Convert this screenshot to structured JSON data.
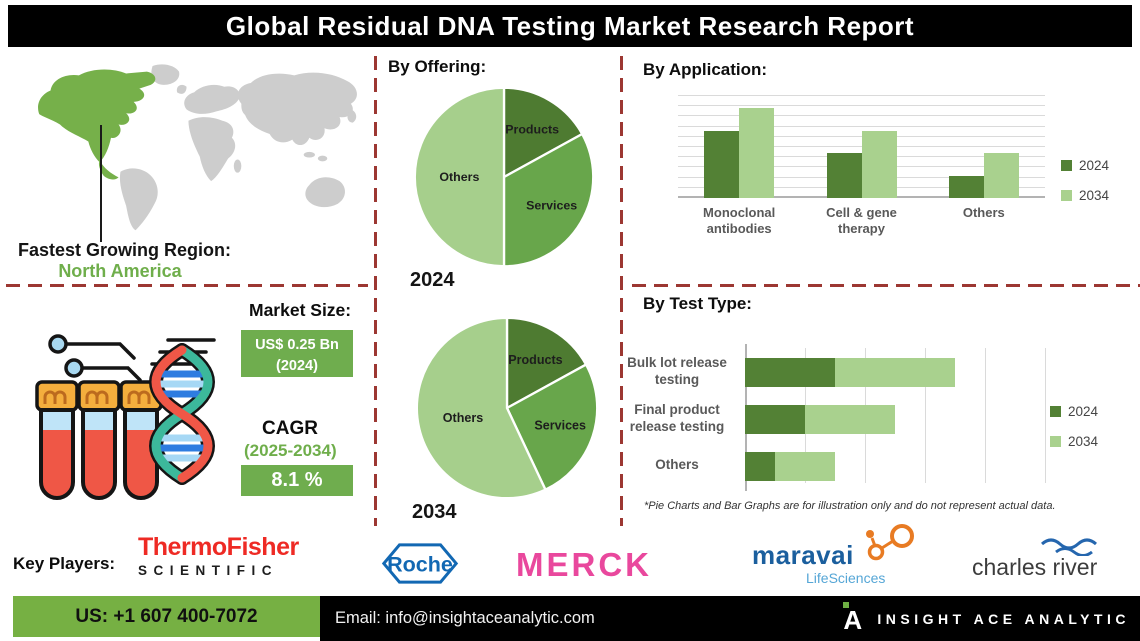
{
  "title": "Global Residual DNA Testing Market Research Report",
  "region": {
    "label": "Fastest Growing Region:",
    "value": "North America"
  },
  "market": {
    "label": "Market Size:",
    "size_value": "US$ 0.25 Bn",
    "size_year": "(2024)",
    "cagr_label": "CAGR",
    "cagr_period": "(2025-2034)",
    "cagr_value": "8.1 %"
  },
  "footnote": "*Pie Charts and Bar Graphs are for illustration only and do not represent actual data.",
  "chart_data": [
    {
      "type": "pie",
      "title": "By Offering:",
      "year": "2024",
      "labels": [
        "Products",
        "Services",
        "Others"
      ],
      "values": [
        17,
        33,
        50
      ],
      "colors": [
        "#4e7b31",
        "#68a64b",
        "#a6cf8c"
      ],
      "legend_position": "none"
    },
    {
      "type": "pie",
      "year": "2034",
      "labels": [
        "Products",
        "Services",
        "Others"
      ],
      "values": [
        17,
        26,
        57
      ],
      "colors": [
        "#4e7b31",
        "#68a64b",
        "#a6cf8c"
      ],
      "legend_position": "none"
    },
    {
      "type": "column",
      "title": "By Application:",
      "categories": [
        "Monoclonal antibodies",
        "Cell & gene therapy",
        "Others"
      ],
      "series": [
        {
          "name": "2024",
          "color": "#538135",
          "values": [
            6.6,
            4.4,
            2.2
          ]
        },
        {
          "name": "2034",
          "color": "#a9d18e",
          "values": [
            8.8,
            6.6,
            4.4
          ]
        }
      ],
      "ylim": [
        0,
        10
      ],
      "gridlines": 10,
      "grid": true,
      "legend_position": "right"
    },
    {
      "type": "stacked-hbar",
      "title": "By Test Type:",
      "categories": [
        "Bulk lot release testing",
        "Final product release testing",
        "Others"
      ],
      "series": [
        {
          "name": "2024",
          "color": "#538135",
          "values": [
            1.5,
            1.0,
            0.5
          ]
        },
        {
          "name": "2034",
          "color": "#a9d18e",
          "values": [
            2.0,
            1.5,
            1.0
          ]
        }
      ],
      "xlim": [
        0,
        5
      ],
      "gridlines": 5,
      "grid": true,
      "legend_position": "right"
    }
  ],
  "key_players": {
    "label": "Key Players:",
    "thermo_line1": "ThermoFisher",
    "thermo_line2": "SCIENTIFIC",
    "roche": "Roche",
    "merck": "MERCK",
    "maravai_line1": "maravai",
    "maravai_line2": "LifeSciences",
    "charles": "charles river"
  },
  "footer": {
    "phone": "US: +1 607 400-7072",
    "email": "Email: info@insightaceanalytic.com",
    "brand": "INSIGHT ACE ANALYTIC"
  },
  "colors": {
    "accent_green": "#6fae4b",
    "map_highlight_green": "#76b04a",
    "map_gray": "#cdcdcd",
    "dashed_red": "#9c3732",
    "footer_green": "#76b043",
    "box_green": "#6fad4e",
    "bar_dark_2024": "#538135",
    "bar_light_2034": "#a9d18e"
  },
  "brand_colors": {
    "thermo_red": "#ee2a24",
    "roche_blue": "#1268b3",
    "merck_pink": "#e9489d",
    "maravai_blue": "#1b5f9e",
    "maravai_light_blue": "#55a6d6",
    "molecule_orange": "#e87b23",
    "charles_gray": "#3c3c3c"
  }
}
